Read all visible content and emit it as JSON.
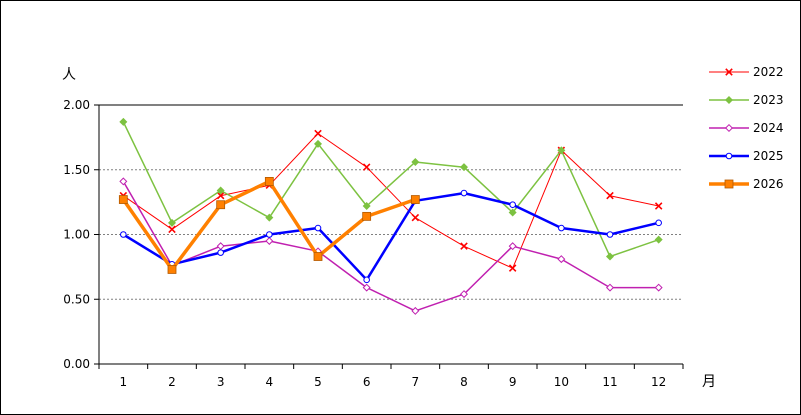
{
  "chart_data": {
    "type": "line",
    "y_unit_label": "人",
    "x_unit_label": "月",
    "categories": [
      "1",
      "2",
      "3",
      "4",
      "5",
      "6",
      "7",
      "8",
      "9",
      "10",
      "11",
      "12"
    ],
    "ylim": [
      0,
      2.0
    ],
    "yticks": [
      "0.00",
      "0.50",
      "1.00",
      "1.50",
      "2.00"
    ],
    "grid": "horizontal dashed at 0.50, 1.00, 1.50",
    "legend_position": "right",
    "series": [
      {
        "name": "2022",
        "color": "#ff0000",
        "marker": "x",
        "width": 1,
        "values": [
          1.3,
          1.04,
          1.3,
          1.38,
          1.78,
          1.52,
          1.13,
          0.91,
          0.74,
          1.65,
          1.3,
          1.22
        ]
      },
      {
        "name": "2023",
        "color": "#7dc241",
        "marker": "diamond",
        "width": 1.5,
        "values": [
          1.87,
          1.09,
          1.34,
          1.13,
          1.7,
          1.22,
          1.56,
          1.52,
          1.17,
          1.65,
          0.83,
          0.96
        ]
      },
      {
        "name": "2024",
        "color": "#c020b0",
        "marker": "diamond-open",
        "width": 1.5,
        "values": [
          1.41,
          0.76,
          0.91,
          0.95,
          0.87,
          0.59,
          0.41,
          0.54,
          0.91,
          0.81,
          0.59,
          0.59
        ]
      },
      {
        "name": "2025",
        "color": "#0000ff",
        "marker": "circle-open",
        "width": 2.5,
        "values": [
          1.0,
          0.77,
          0.86,
          1.0,
          1.05,
          0.65,
          1.26,
          1.32,
          1.23,
          1.05,
          1.0,
          1.09
        ]
      },
      {
        "name": "2026",
        "color": "#ff8000",
        "marker": "square",
        "width": 3.5,
        "values": [
          1.27,
          0.73,
          1.23,
          1.41,
          0.83,
          1.14,
          1.27,
          null,
          null,
          null,
          null,
          null
        ]
      }
    ]
  }
}
